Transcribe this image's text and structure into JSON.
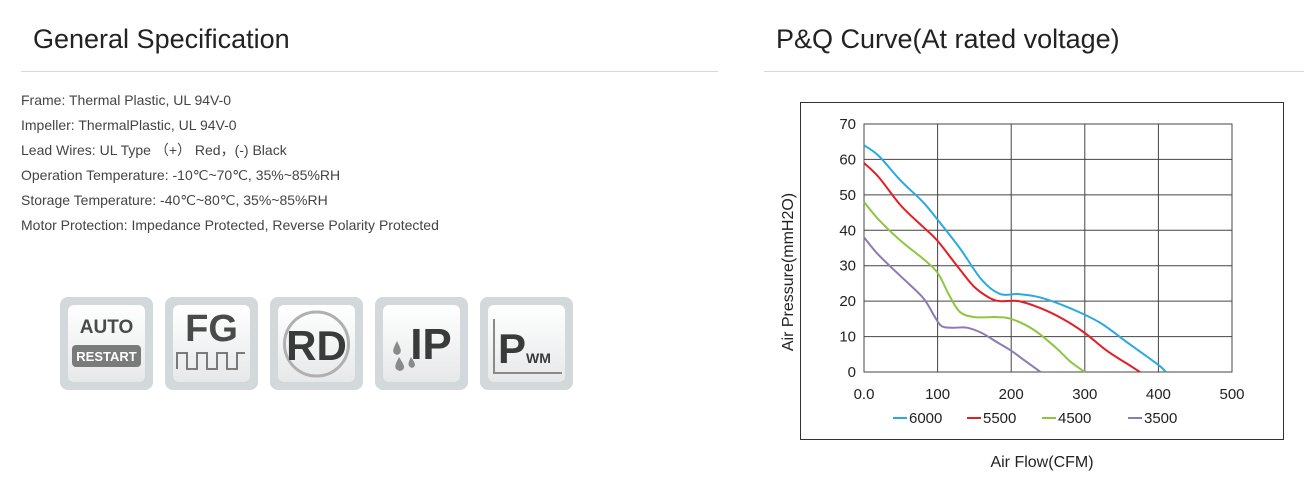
{
  "left_section": {
    "title": "General Specification",
    "specs": [
      "Frame: Thermal Plastic, UL 94V-0",
      "Impeller: ThermalPlastic, UL 94V-0",
      "Lead Wires: UL Type （+） Red，(-) Black",
      "Operation Temperature: -10℃~70℃, 35%~85%RH",
      "Storage Temperature: -40℃~80℃, 35%~85%RH",
      "Motor Protection: Impedance Protected, Reverse Polarity Protected"
    ],
    "badges": [
      {
        "icon": "auto-restart-icon",
        "text_top": "AUTO",
        "text_bottom": "RESTART"
      },
      {
        "icon": "fg-signal-icon",
        "text": "FG"
      },
      {
        "icon": "rd-rotation-detect-icon",
        "text": "RD"
      },
      {
        "icon": "ip-protection-icon",
        "text": "IP"
      },
      {
        "icon": "pwm-control-icon",
        "text_big": "P",
        "text_small": "WM"
      }
    ]
  },
  "right_section": {
    "title": "P&Q Curve(At rated voltage)"
  },
  "chart_data": {
    "type": "line",
    "title": "P&Q Curve(At rated voltage)",
    "xlabel": "Air Flow(CFM)",
    "ylabel": "Air Pressure(mmH2O)",
    "xlim": [
      0,
      500
    ],
    "ylim": [
      0,
      70
    ],
    "x_ticks": [
      "0.0",
      "100",
      "200",
      "300",
      "400",
      "500"
    ],
    "y_ticks": [
      "0",
      "10",
      "20",
      "30",
      "40",
      "50",
      "60",
      "70"
    ],
    "grid": true,
    "legend_position": "bottom",
    "series": [
      {
        "name": "6000",
        "color": "#29a9e1",
        "points": [
          [
            0,
            64
          ],
          [
            20,
            61
          ],
          [
            50,
            54
          ],
          [
            80,
            48
          ],
          [
            100,
            43
          ],
          [
            130,
            35
          ],
          [
            160,
            26
          ],
          [
            185,
            22
          ],
          [
            210,
            22
          ],
          [
            240,
            21
          ],
          [
            280,
            18
          ],
          [
            320,
            14
          ],
          [
            360,
            8
          ],
          [
            400,
            2
          ],
          [
            410,
            0
          ]
        ]
      },
      {
        "name": "5500",
        "color": "#e31e24",
        "points": [
          [
            0,
            59
          ],
          [
            20,
            55
          ],
          [
            50,
            47
          ],
          [
            80,
            41
          ],
          [
            100,
            37
          ],
          [
            130,
            29
          ],
          [
            150,
            24
          ],
          [
            170,
            21
          ],
          [
            185,
            20
          ],
          [
            210,
            20
          ],
          [
            240,
            18
          ],
          [
            270,
            15
          ],
          [
            300,
            11
          ],
          [
            330,
            6
          ],
          [
            360,
            2
          ],
          [
            375,
            0
          ]
        ]
      },
      {
        "name": "4500",
        "color": "#8dc63f",
        "points": [
          [
            0,
            48
          ],
          [
            20,
            43
          ],
          [
            50,
            37
          ],
          [
            80,
            32
          ],
          [
            100,
            28
          ],
          [
            115,
            22
          ],
          [
            130,
            17
          ],
          [
            150,
            15.5
          ],
          [
            180,
            15.5
          ],
          [
            200,
            15
          ],
          [
            230,
            12
          ],
          [
            260,
            7
          ],
          [
            280,
            3
          ],
          [
            300,
            0
          ]
        ]
      },
      {
        "name": "3500",
        "color": "#8b7bb5",
        "points": [
          [
            0,
            38
          ],
          [
            20,
            33
          ],
          [
            50,
            27
          ],
          [
            80,
            21
          ],
          [
            95,
            16
          ],
          [
            105,
            13
          ],
          [
            120,
            12.5
          ],
          [
            140,
            12.5
          ],
          [
            160,
            11
          ],
          [
            180,
            8.5
          ],
          [
            200,
            6
          ],
          [
            220,
            3
          ],
          [
            240,
            0
          ]
        ]
      }
    ]
  }
}
